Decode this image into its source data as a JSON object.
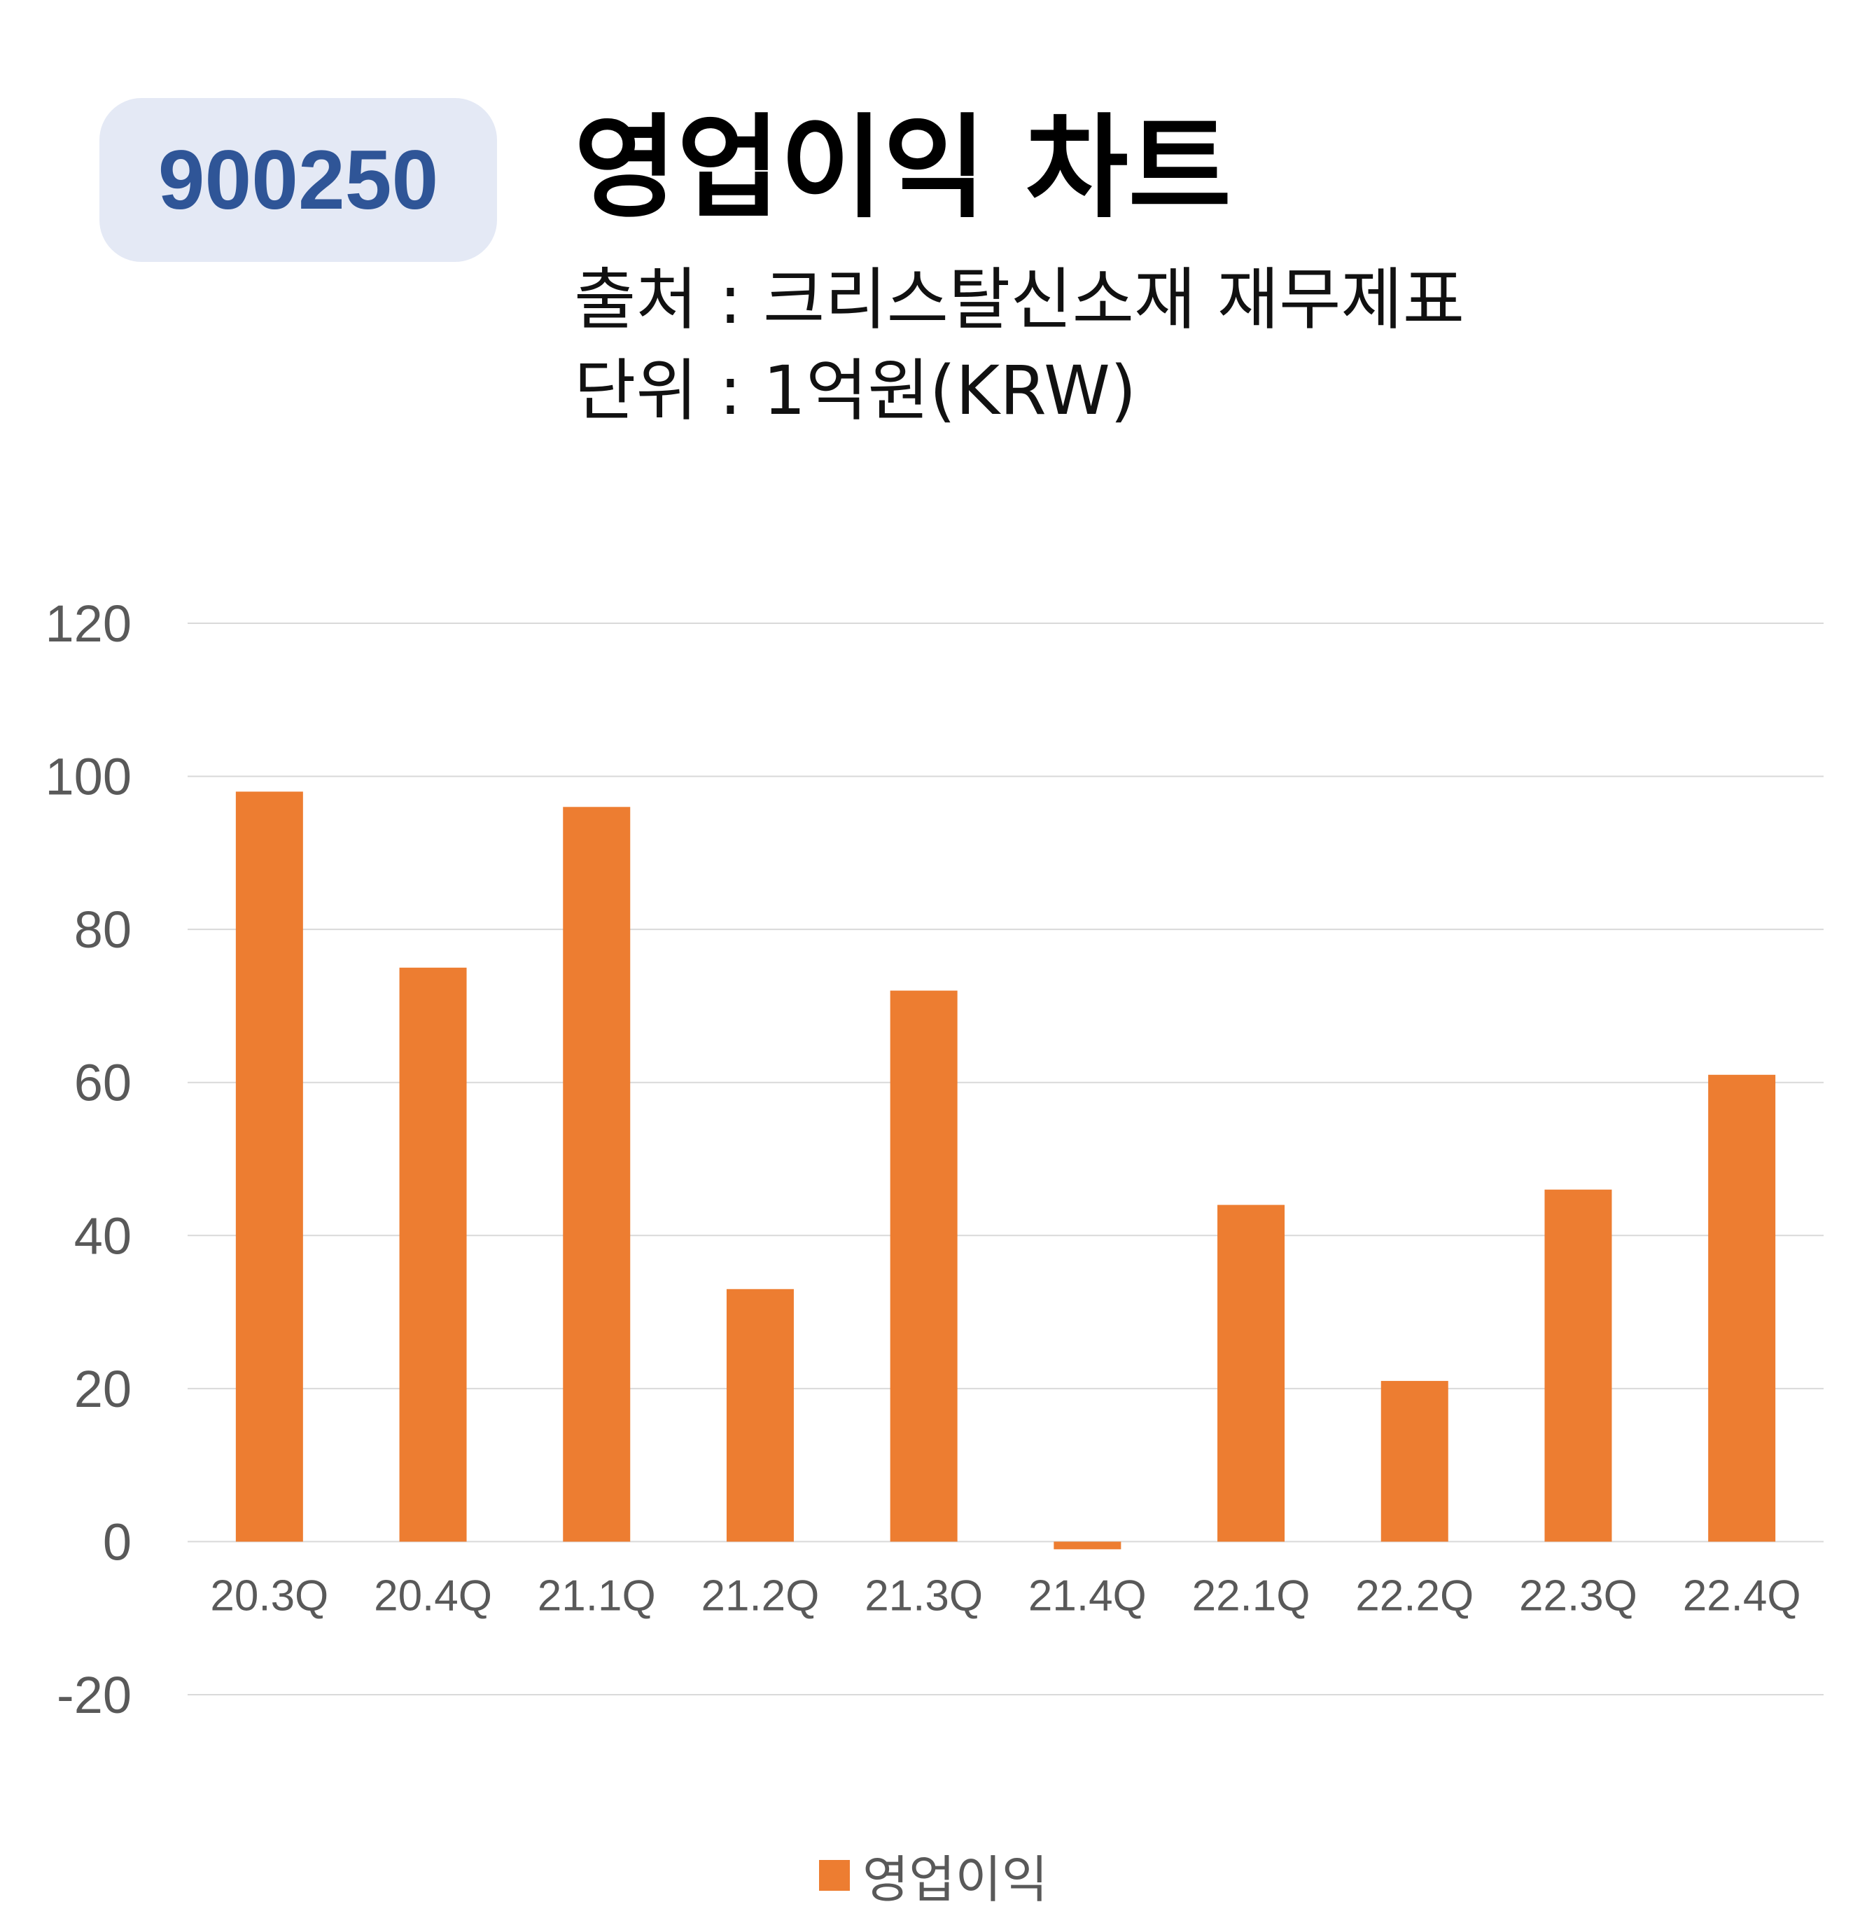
{
  "badge": "900250",
  "title": "영업이익 차트",
  "source": "출처 : 크리스탈신소재 재무제표",
  "unit": "단위 : 1억원(KRW)",
  "colors": {
    "bar": "#ed7d31",
    "badge_bg": "#e4e9f5",
    "badge_text": "#2f5597",
    "grid": "#d9d9d9"
  },
  "chart_data": {
    "type": "bar",
    "categories": [
      "20.3Q",
      "20.4Q",
      "21.1Q",
      "21.2Q",
      "21.3Q",
      "21.4Q",
      "22.1Q",
      "22.2Q",
      "22.3Q",
      "22.4Q"
    ],
    "series": [
      {
        "name": "영업이익",
        "values": [
          98,
          75,
          96,
          33,
          72,
          -1,
          44,
          21,
          46,
          61
        ]
      }
    ],
    "ylim": [
      -20,
      120
    ],
    "yticks": [
      "120",
      "100",
      "80",
      "60",
      "40",
      "20",
      "0",
      "-20"
    ],
    "grid": true,
    "legend": "bottom"
  }
}
